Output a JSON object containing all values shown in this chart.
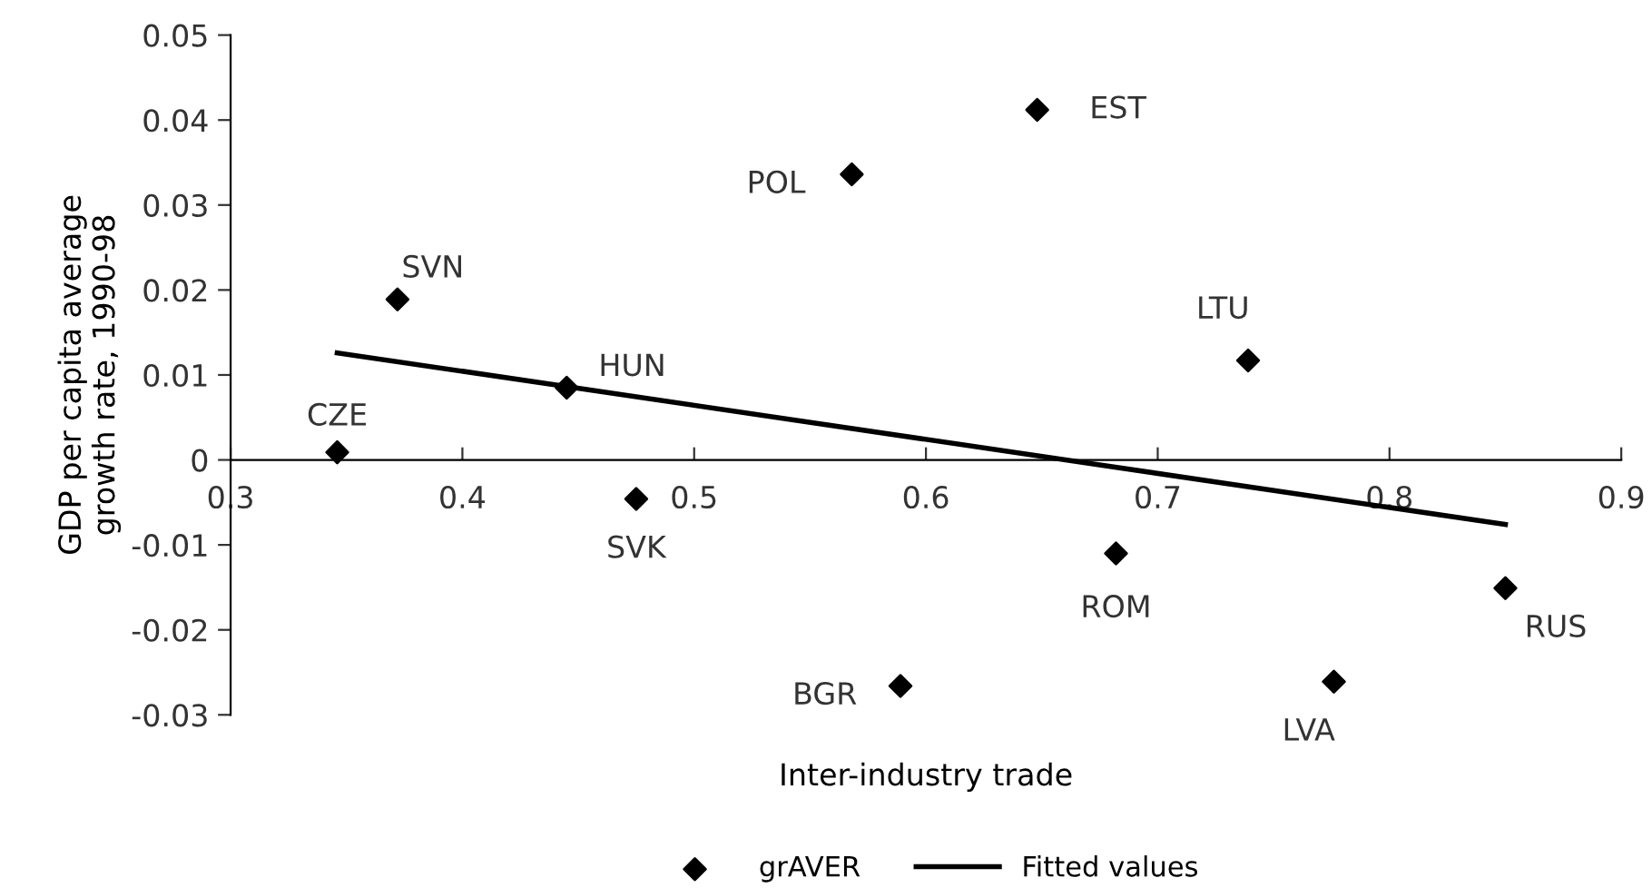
{
  "chart_data": {
    "type": "scatter",
    "xlabel": "Inter-industry trade",
    "ylabel": "GDP per capita average\ngrowth rate, 1990-98",
    "xlim": [
      0.3,
      0.9
    ],
    "xticks": [
      0.3,
      0.4,
      0.5,
      0.6,
      0.7,
      0.8,
      0.9
    ],
    "ylim": [
      -0.03,
      0.05
    ],
    "yticks": [
      -0.03,
      -0.02,
      -0.01,
      0,
      0.01,
      0.02,
      0.03,
      0.04,
      0.05
    ],
    "grid": false,
    "legend": "bottom",
    "marker": "diamond",
    "series": [
      {
        "name": "grAVER",
        "color": "#000000",
        "x": [
          0.346,
          0.372,
          0.445,
          0.475,
          0.568,
          0.589,
          0.648,
          0.682,
          0.739,
          0.776,
          0.85
        ],
        "values": [
          0.0009,
          0.0189,
          0.0085,
          -0.0046,
          0.0336,
          -0.0266,
          0.0412,
          -0.011,
          0.0117,
          -0.0261,
          -0.0151
        ]
      },
      {
        "name": "Fitted values",
        "type": "line",
        "color": "#000000",
        "x": [
          0.346,
          0.85
        ],
        "values": [
          0.0126,
          -0.0076
        ],
        "marker": "none",
        "line_style": "solid"
      }
    ],
    "annotations": [
      {
        "text": "CZE",
        "x": 0.346,
        "y": 0.0009
      },
      {
        "text": "SVN",
        "x": 0.372,
        "y": 0.0189
      },
      {
        "text": "HUN",
        "x": 0.445,
        "y": 0.0085
      },
      {
        "text": "SVK",
        "x": 0.475,
        "y": -0.0046
      },
      {
        "text": "POL",
        "x": 0.568,
        "y": 0.0336
      },
      {
        "text": "BGR",
        "x": 0.589,
        "y": -0.0266
      },
      {
        "text": "EST",
        "x": 0.648,
        "y": 0.0412
      },
      {
        "text": "ROM",
        "x": 0.682,
        "y": -0.011
      },
      {
        "text": "LTU",
        "x": 0.739,
        "y": 0.0117
      },
      {
        "text": "LVA",
        "x": 0.776,
        "y": -0.0261
      },
      {
        "text": "RUS",
        "x": 0.85,
        "y": -0.0151
      }
    ]
  }
}
